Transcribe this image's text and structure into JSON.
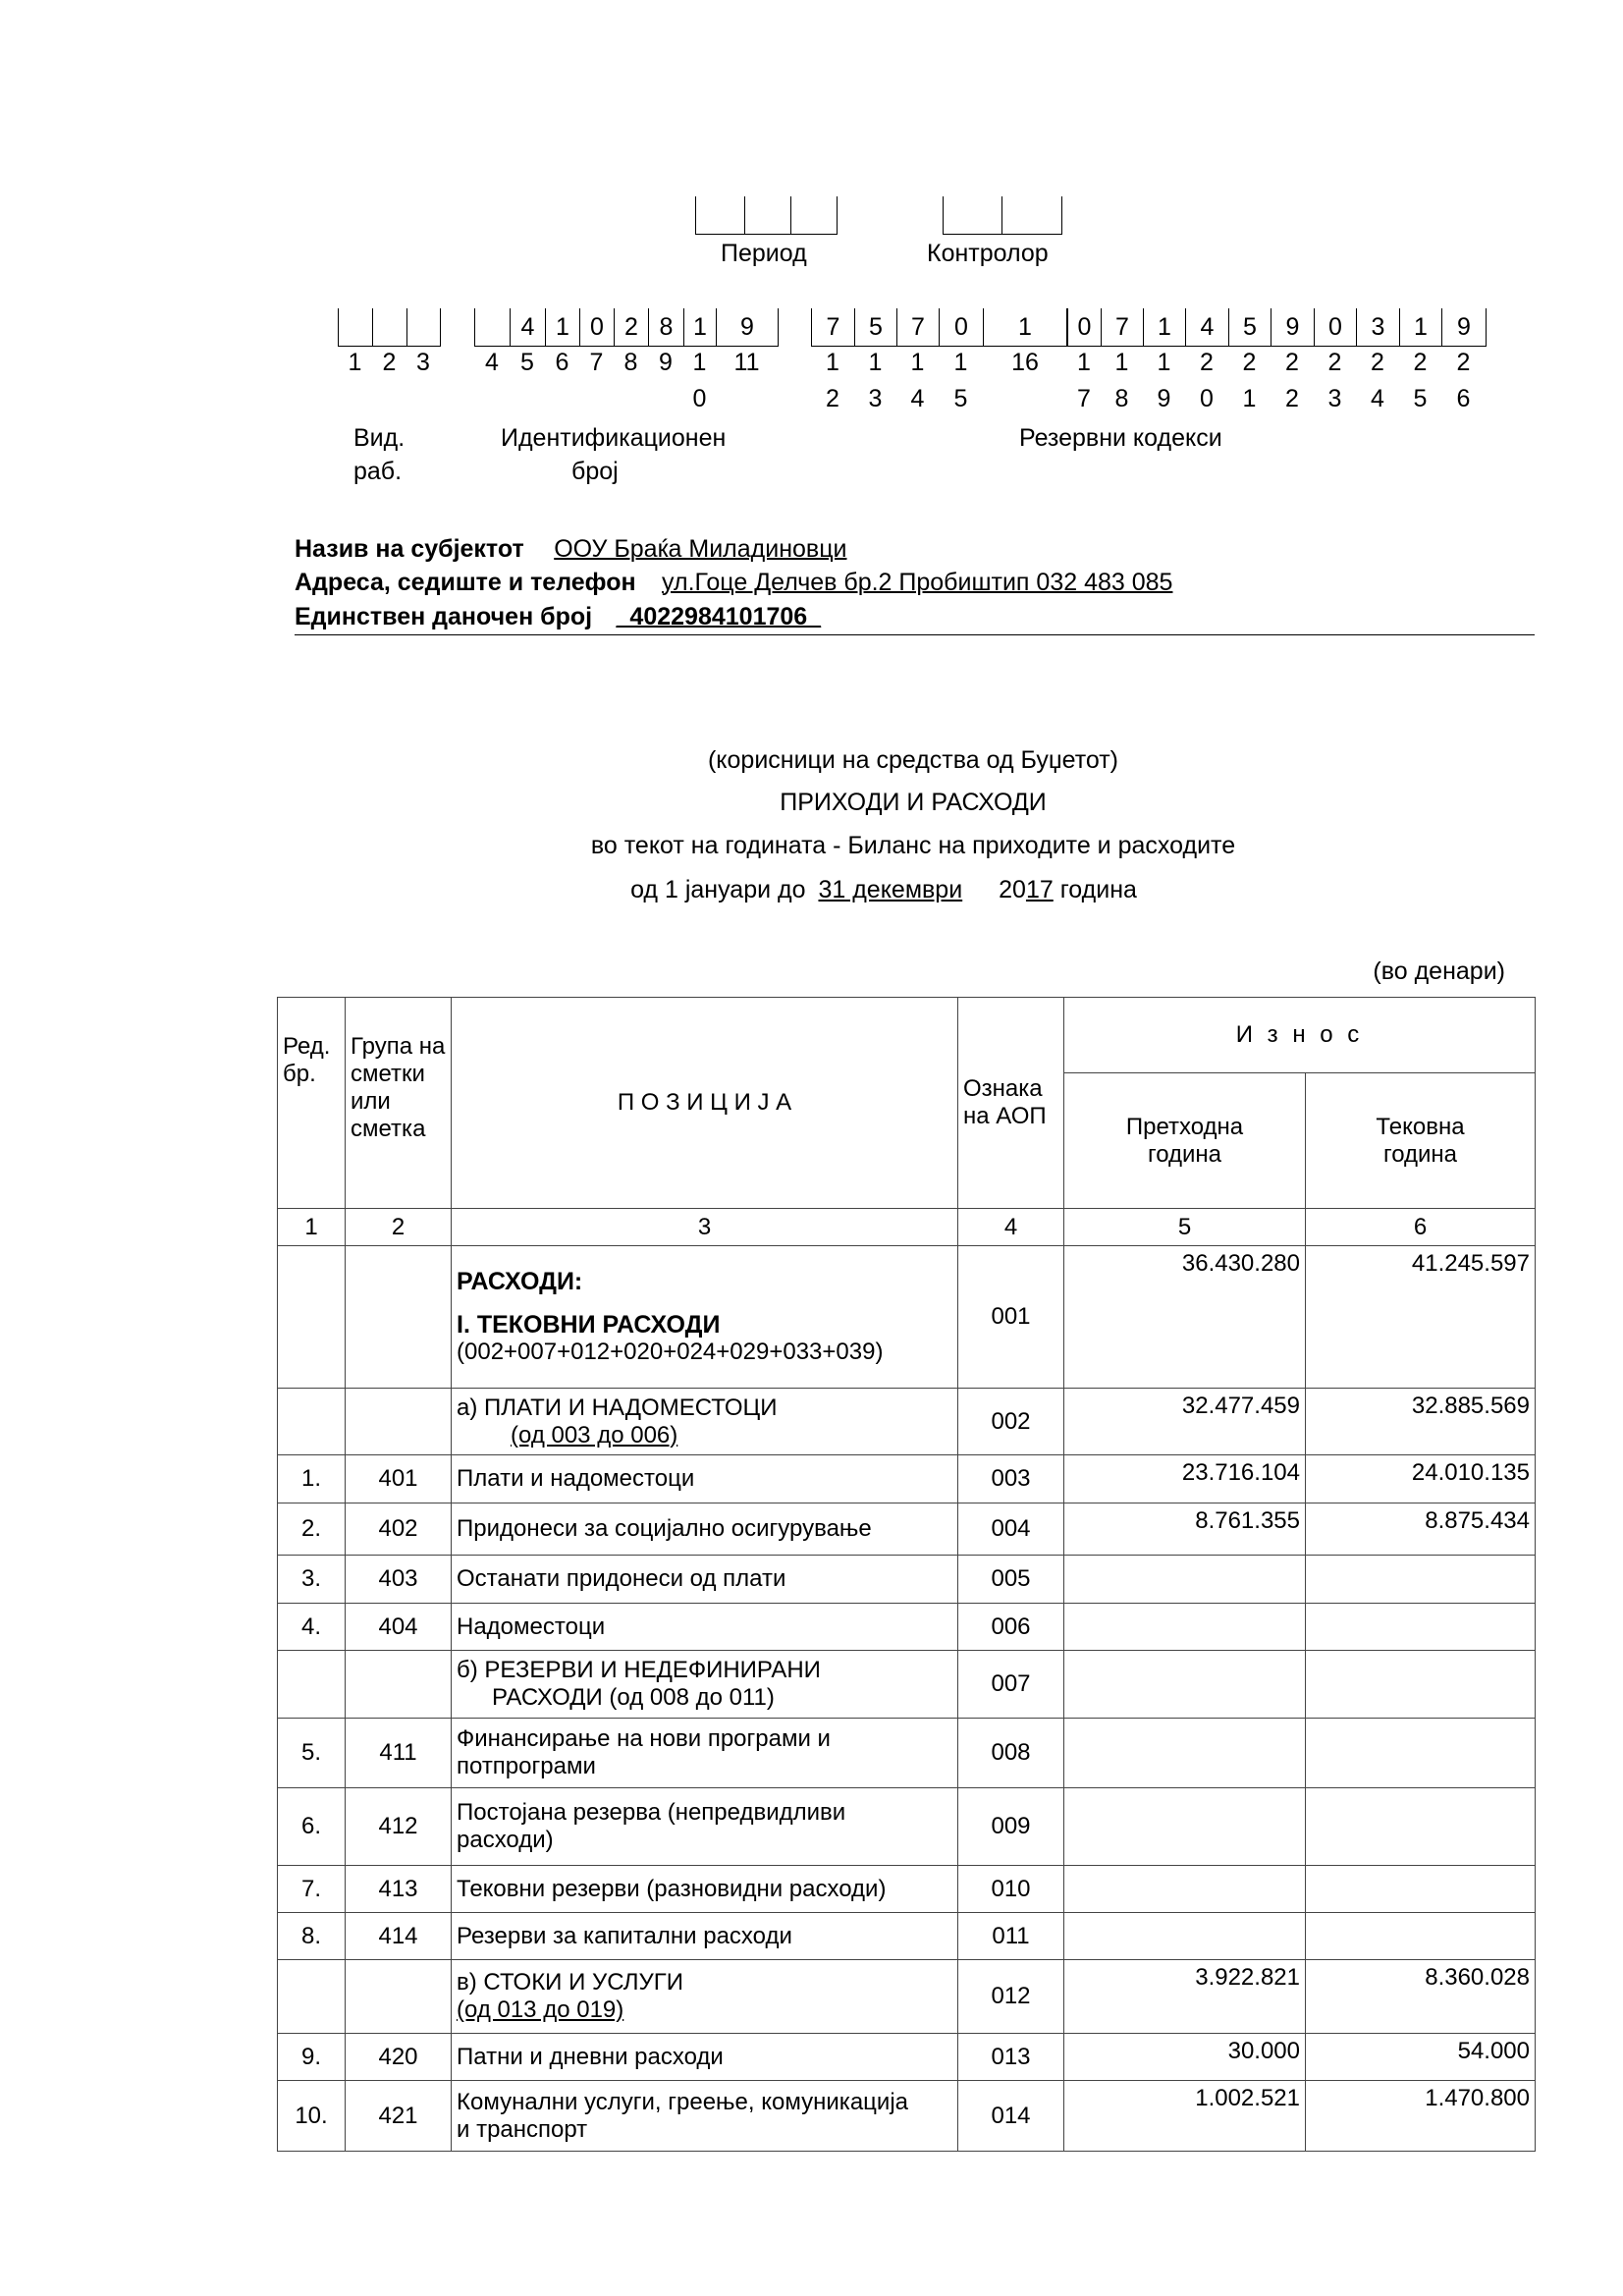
{
  "header": {
    "period_label": "Период",
    "controller_label": "Контролор",
    "code_groups": [
      {
        "values": [
          "",
          "",
          ""
        ],
        "positions": [
          [
            "1"
          ],
          [
            "2"
          ],
          [
            "3"
          ]
        ]
      },
      {
        "values": [
          "",
          "4",
          "1",
          "0",
          "2",
          "8",
          "1",
          "9"
        ],
        "positions": [
          [
            "4"
          ],
          [
            "5"
          ],
          [
            "6"
          ],
          [
            "7"
          ],
          [
            "8"
          ],
          [
            "9"
          ],
          [
            "1",
            "0"
          ],
          [
            "11"
          ]
        ]
      },
      {
        "values": [
          "7",
          "5",
          "7",
          "0",
          "1",
          "0",
          "7",
          "1",
          "4",
          "5",
          "9",
          "0",
          "3",
          "1",
          "9"
        ],
        "positions": [
          [
            "1",
            "2"
          ],
          [
            "1",
            "3"
          ],
          [
            "1",
            "4"
          ],
          [
            "1",
            "5"
          ],
          [
            "16"
          ],
          [
            "1",
            "7"
          ],
          [
            "1",
            "8"
          ],
          [
            "1",
            "9"
          ],
          [
            "2",
            "0"
          ],
          [
            "2",
            "1"
          ],
          [
            "2",
            "2"
          ],
          [
            "2",
            "3"
          ],
          [
            "2",
            "4"
          ],
          [
            "2",
            "5"
          ],
          [
            "2",
            "6"
          ]
        ]
      }
    ],
    "vid_label_1": "Вид.",
    "vid_label_2": "раб.",
    "id_label_1": "Идентификационен",
    "id_label_2": "број",
    "reserve_label": "Резервни кодекси"
  },
  "entity": {
    "name_label": "Назив на субјектот",
    "name_value": "ООУ  Браќа Миладиновци",
    "address_label": "Адреса, седиште и телефон",
    "address_value": "ул.Гоце Делчев бр.2 Пробиштип 032 483 085",
    "tax_label": "Единствен даночен број",
    "tax_value": "_4022984101706_"
  },
  "title": {
    "line1": "(корисници на средства од Буџетот)",
    "line2": "ПРИХОДИ И РАСХОДИ",
    "line3": "во текот на годината - Биланс на приходите и расходите",
    "line4_a": "од 1 јануари до",
    "line4_date": "31 декември",
    "line4_year_a": "20",
    "line4_year_b": "17",
    "line4_b": "година",
    "currency": "(во денари)"
  },
  "table": {
    "headers": {
      "no": "Ред. бр.",
      "group": "Група на сметки или сметка",
      "position": "П О З И Ц И Ј А",
      "aop": "Ознака на АОП",
      "amount": "И  з  н о  с",
      "prev": "Претходна година",
      "curr": "Тековна година"
    },
    "column_numbers": [
      "1",
      "2",
      "3",
      "4",
      "5",
      "6"
    ],
    "rows": [
      {
        "no": "",
        "group": "",
        "position": [
          "РАСХОДИ:",
          "I.  ТЕКОВНИ РАСХОДИ",
          "(002+007+012+020+024+029+033+039)"
        ],
        "aop": "001",
        "prev": "36.430.280",
        "curr": "41.245.597"
      },
      {
        "no": "",
        "group": "",
        "position": [
          "а) ПЛАТИ И НАДОМЕСТОЦИ",
          "(од 003 до 006)"
        ],
        "aop": "002",
        "prev": "32.477.459",
        "curr": "32.885.569"
      },
      {
        "no": "1.",
        "group": "401",
        "position": [
          "Плати и надоместоци"
        ],
        "aop": "003",
        "prev": "23.716.104",
        "curr": "24.010.135"
      },
      {
        "no": "2.",
        "group": "402",
        "position": [
          "Придонеси за социјално осигурување"
        ],
        "aop": "004",
        "prev": "8.761.355",
        "curr": "8.875.434"
      },
      {
        "no": "3.",
        "group": "403",
        "position": [
          "Останати придонеси од плати"
        ],
        "aop": "005",
        "prev": "",
        "curr": ""
      },
      {
        "no": "4.",
        "group": "404",
        "position": [
          "Надоместоци"
        ],
        "aop": "006",
        "prev": "",
        "curr": ""
      },
      {
        "no": "",
        "group": "",
        "position": [
          "б) РЕЗЕРВИ И НЕДЕФИНИРАНИ",
          "РАСХОДИ (од 008 до 011)"
        ],
        "aop": "007",
        "prev": "",
        "curr": ""
      },
      {
        "no": "5.",
        "group": "411",
        "position": [
          "Финансирање на нови програми и",
          "потпрограми"
        ],
        "aop": "008",
        "prev": "",
        "curr": ""
      },
      {
        "no": "6.",
        "group": "412",
        "position": [
          "Постојана резерва (непредвидливи",
          "расходи)"
        ],
        "aop": "009",
        "prev": "",
        "curr": ""
      },
      {
        "no": "7.",
        "group": "413",
        "position": [
          "Тековни резерви (разновидни расходи)"
        ],
        "aop": "010",
        "prev": "",
        "curr": ""
      },
      {
        "no": "8.",
        "group": "414",
        "position": [
          "Резерви за капитални расходи"
        ],
        "aop": "011",
        "prev": "",
        "curr": ""
      },
      {
        "no": "",
        "group": "",
        "position": [
          "в) СТОКИ И УСЛУГИ",
          "(од 013 до 019)"
        ],
        "aop": "012",
        "prev": "3.922.821",
        "curr": "8.360.028"
      },
      {
        "no": "9.",
        "group": "420",
        "position": [
          "Патни и дневни расходи"
        ],
        "aop": "013",
        "prev": "30.000",
        "curr": "54.000"
      },
      {
        "no": "10.",
        "group": "421",
        "position": [
          "Комунални услуги, греење, комуникација",
          "и транспорт"
        ],
        "aop": "014",
        "prev": "1.002.521",
        "curr": "1.470.800"
      }
    ]
  }
}
